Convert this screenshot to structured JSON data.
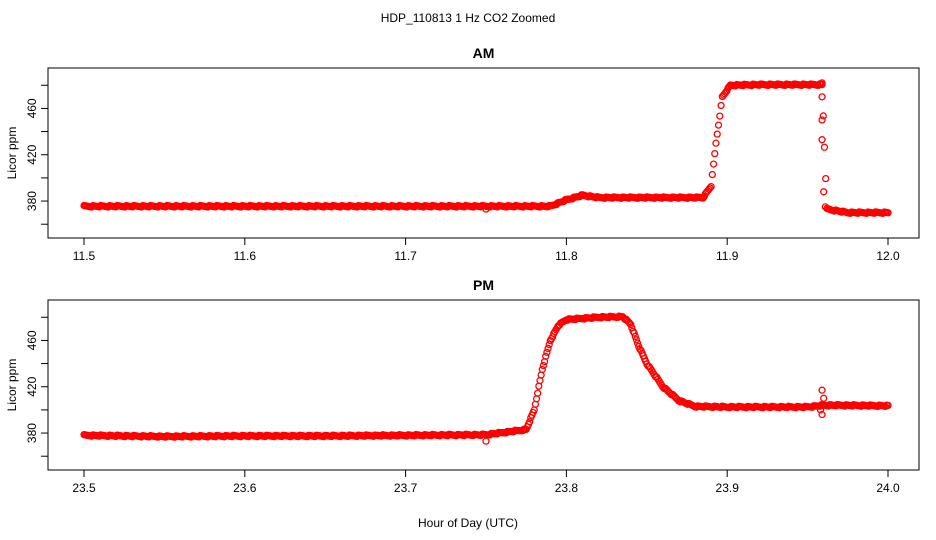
{
  "title": "HDP_110813  1 Hz CO2 Zoomed",
  "xlabel": "Hour of Day (UTC)",
  "series_color": "#ff0000",
  "chart_data": [
    {
      "type": "scatter",
      "title": "AM",
      "ylabel": "Licor ppm",
      "xlim": [
        11.5,
        12.0
      ],
      "ylim": [
        355,
        488
      ],
      "xticks": [
        11.5,
        11.6,
        11.7,
        11.8,
        11.9,
        12.0
      ],
      "xtick_labels": [
        "11.5",
        "11.6",
        "11.7",
        "11.8",
        "11.9",
        "12.0"
      ],
      "yticks": [
        380,
        420,
        460
      ],
      "ytick_labels": [
        "380",
        "420",
        "460"
      ],
      "path": [
        [
          11.5,
          375.5
        ],
        [
          11.55,
          375.5
        ],
        [
          11.6,
          375.5
        ],
        [
          11.65,
          375.5
        ],
        [
          11.7,
          375.5
        ],
        [
          11.75,
          375.5
        ],
        [
          11.79,
          375.5
        ],
        [
          11.8,
          381
        ],
        [
          11.81,
          385
        ],
        [
          11.82,
          383
        ],
        [
          11.85,
          383
        ],
        [
          11.885,
          383
        ],
        [
          11.89,
          393
        ],
        [
          11.893,
          430
        ],
        [
          11.897,
          470
        ],
        [
          11.902,
          480
        ],
        [
          11.92,
          480.5
        ],
        [
          11.94,
          480.5
        ],
        [
          11.959,
          480.5
        ],
        [
          11.962,
          373
        ],
        [
          11.975,
          370
        ],
        [
          12.0,
          370
        ]
      ],
      "points": [
        [
          11.75,
          373
        ],
        [
          11.959,
          482
        ],
        [
          11.959,
          470
        ],
        [
          11.959,
          450
        ],
        [
          11.959,
          433
        ],
        [
          11.96,
          388
        ],
        [
          11.961,
          375
        ]
      ]
    },
    {
      "type": "scatter",
      "title": "PM",
      "ylabel": "Licor ppm",
      "xlim": [
        23.5,
        24.0
      ],
      "ylim": [
        355,
        488
      ],
      "xticks": [
        23.5,
        23.6,
        23.7,
        23.8,
        23.9,
        24.0
      ],
      "xtick_labels": [
        "23.5",
        "23.6",
        "23.7",
        "23.8",
        "23.9",
        "24.0"
      ],
      "yticks": [
        380,
        420,
        460
      ],
      "ytick_labels": [
        "380",
        "420",
        "460"
      ],
      "path": [
        [
          23.5,
          378
        ],
        [
          23.55,
          377
        ],
        [
          23.6,
          377.5
        ],
        [
          23.65,
          377.5
        ],
        [
          23.7,
          378
        ],
        [
          23.75,
          378.5
        ],
        [
          23.775,
          383
        ],
        [
          23.78,
          400
        ],
        [
          23.785,
          435
        ],
        [
          23.79,
          460
        ],
        [
          23.795,
          473
        ],
        [
          23.8,
          478
        ],
        [
          23.82,
          480
        ],
        [
          23.835,
          480.5
        ],
        [
          23.84,
          474
        ],
        [
          23.845,
          455
        ],
        [
          23.85,
          440
        ],
        [
          23.86,
          420
        ],
        [
          23.87,
          408
        ],
        [
          23.88,
          403
        ],
        [
          23.9,
          402.5
        ],
        [
          23.95,
          402.5
        ],
        [
          23.96,
          404
        ],
        [
          23.97,
          404
        ],
        [
          24.0,
          403.5
        ]
      ],
      "points": [
        [
          23.75,
          373
        ],
        [
          23.959,
          417
        ],
        [
          23.959,
          396
        ],
        [
          23.96,
          410
        ],
        [
          23.958,
          400
        ]
      ]
    }
  ]
}
